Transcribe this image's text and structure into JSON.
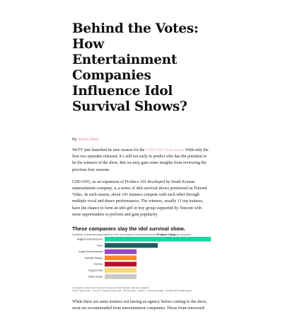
{
  "article": {
    "title": "Behind the Votes: How Entertainment Companies Influence Idol Survival Shows?",
    "byline_prefix": "By ",
    "author": "Sylvia Shen",
    "paragraph1": {
      "before_link": "WeTV just launched its new season for the ",
      "link_text": "CHUANG Asia series",
      "after_link": ". With only the first two episodes released, it’s still too early to predict who has the potential to be the winners of the show. But we may gain some insights from reviewing the previous four seasons."
    },
    "paragraph2": "CHUANG, as an expansion of Produce 101 developed by South Korean entertainment company, is a series of idol survival shows premiered on Tencent Video. In each season, about 101 trainees compete with each other through multiple vocal and dance performances. The winners, usually 11 top trainees, have the chance to form an idol girl or boy group supported by Tencent with more opportunities to perform and gain popularity.",
    "paragraph3": "While there are some trainees not having an agency before coming to the show, most are recommended from entertainment companies. Those from renowned"
  },
  "chart": {
    "title": "These companies slay the idol survival show.",
    "subtitle_before": "Numbers of final winning trainees in the four-season idol survival show ",
    "subtitle_bold": "Produce Camp",
    "subtitle_after": " by company",
    "note": "Companies on the chart have more than one final trainees over four seasons.",
    "source": "Chart: Sylvia Shen · Source: Produce Camp Wiki · Get the data · Embed · Download image · Created with Datawrapper"
  },
  "chart_data": {
    "type": "bar",
    "orientation": "horizontal",
    "categories": [
      "Wajijiwa Entertainment",
      "Avex",
      "Insight Entertainment",
      "Jaywalk Newjoy",
      "YueHua",
      "Original Plan",
      "White Media"
    ],
    "values": [
      10,
      5,
      3,
      3,
      3,
      3,
      3
    ],
    "colors": [
      "#1dd3a7",
      "#1c5b63",
      "#9b46c4",
      "#f28c28",
      "#b5122e",
      "#f7d77a",
      "#c8c8c8"
    ],
    "xlim": [
      0,
      10
    ],
    "grid": false,
    "legend": "none"
  }
}
